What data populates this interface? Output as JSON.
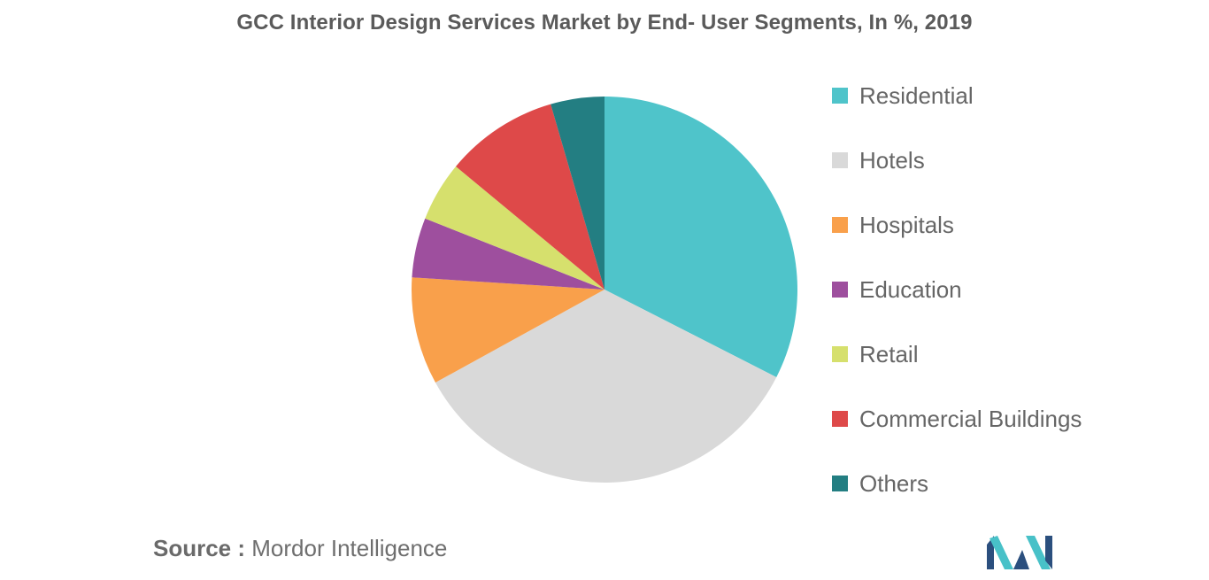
{
  "chart_data": {
    "type": "pie",
    "title": "GCC Interior Design Services Market by End- User Segments, In %, 2019",
    "legend_position": "right",
    "start_angle": "top, clockwise",
    "slices": [
      {
        "label": "Residential",
        "value": 32.5,
        "color": "#4FC4CA"
      },
      {
        "label": "Hotels",
        "value": 34.5,
        "color": "#D9D9D9"
      },
      {
        "label": "Hospitals",
        "value": 9.0,
        "color": "#F9A04B"
      },
      {
        "label": "Education",
        "value": 5.0,
        "color": "#9E4F9E"
      },
      {
        "label": "Retail",
        "value": 5.0,
        "color": "#D6E06D"
      },
      {
        "label": "Commercial Buildings",
        "value": 9.5,
        "color": "#DE4949"
      },
      {
        "label": "Others",
        "value": 4.5,
        "color": "#237E82"
      }
    ]
  },
  "source": {
    "prefix": "Source :",
    "text": "Mordor Intelligence"
  },
  "logo": {
    "icon": "mordor-intelligence-logo",
    "colors": [
      "#2B4F7E",
      "#48C1C8"
    ]
  }
}
